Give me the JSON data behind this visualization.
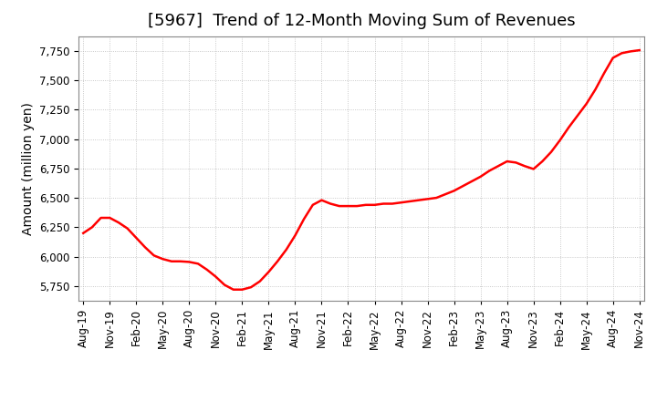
{
  "title": "[5967]  Trend of 12-Month Moving Sum of Revenues",
  "ylabel": "Amount (million yen)",
  "line_color": "#ff0000",
  "line_width": 1.8,
  "background_color": "#ffffff",
  "plot_background_color": "#ffffff",
  "grid_color": "#bbbbbb",
  "ylim": [
    5625,
    7875
  ],
  "yticks": [
    5750,
    6000,
    6250,
    6500,
    6750,
    7000,
    7250,
    7500,
    7750
  ],
  "xtick_labels": [
    "Aug-19",
    "Nov-19",
    "Feb-20",
    "May-20",
    "Aug-20",
    "Nov-20",
    "Feb-21",
    "May-21",
    "Aug-21",
    "Nov-21",
    "Feb-22",
    "May-22",
    "Aug-22",
    "Nov-22",
    "Feb-23",
    "May-23",
    "Aug-23",
    "Nov-23",
    "Feb-24",
    "May-24",
    "Aug-24",
    "Nov-24"
  ],
  "data_x": [
    0,
    1,
    2,
    3,
    4,
    5,
    6,
    7,
    8,
    9,
    10,
    11,
    12,
    13,
    14,
    15,
    16,
    17,
    18,
    19,
    20,
    21,
    22,
    23,
    24,
    25,
    26,
    27,
    28,
    29,
    30,
    31,
    32,
    33,
    34,
    35,
    36,
    37,
    38,
    39,
    40,
    41,
    42,
    43,
    44,
    45,
    46,
    47,
    48,
    49,
    50,
    51,
    52,
    53,
    54,
    55,
    56,
    57,
    58,
    59,
    60,
    61,
    62,
    63
  ],
  "data_y": [
    6200,
    6250,
    6330,
    6330,
    6290,
    6240,
    6160,
    6080,
    6010,
    5980,
    5960,
    5960,
    5955,
    5940,
    5890,
    5830,
    5760,
    5720,
    5720,
    5740,
    5790,
    5870,
    5960,
    6060,
    6180,
    6320,
    6440,
    6480,
    6450,
    6430,
    6430,
    6430,
    6440,
    6440,
    6450,
    6450,
    6460,
    6470,
    6480,
    6490,
    6500,
    6530,
    6560,
    6600,
    6640,
    6680,
    6730,
    6770,
    6810,
    6800,
    6770,
    6745,
    6810,
    6890,
    6990,
    7100,
    7200,
    7300,
    7420,
    7560,
    7690,
    7730,
    7745,
    7755
  ],
  "title_fontsize": 13,
  "tick_fontsize": 8.5,
  "ylabel_fontsize": 10
}
